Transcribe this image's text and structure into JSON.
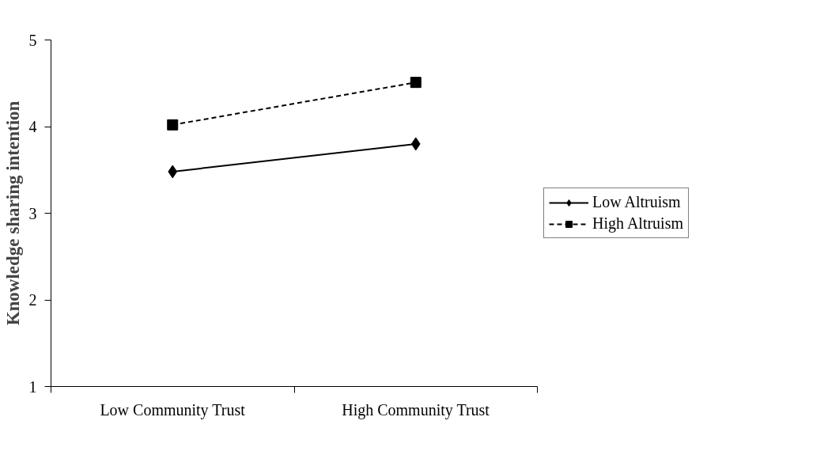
{
  "chart_data": {
    "type": "line",
    "ylabel": "Knowledge sharing intention",
    "categories": [
      "Low Community Trust",
      "High Community Trust"
    ],
    "series": [
      {
        "name": "Low Altruism",
        "color": "#000000",
        "values": [
          3.48,
          3.8
        ],
        "marker": "diamond",
        "line_style": "solid"
      },
      {
        "name": "High Altruism",
        "color": "#000000",
        "values": [
          4.02,
          4.51
        ],
        "marker": "square",
        "line_style": "dashed"
      }
    ],
    "ylim": [
      1,
      5
    ],
    "yticks": [
      1,
      2,
      3,
      4,
      5
    ],
    "grid": false,
    "legend": "right"
  }
}
